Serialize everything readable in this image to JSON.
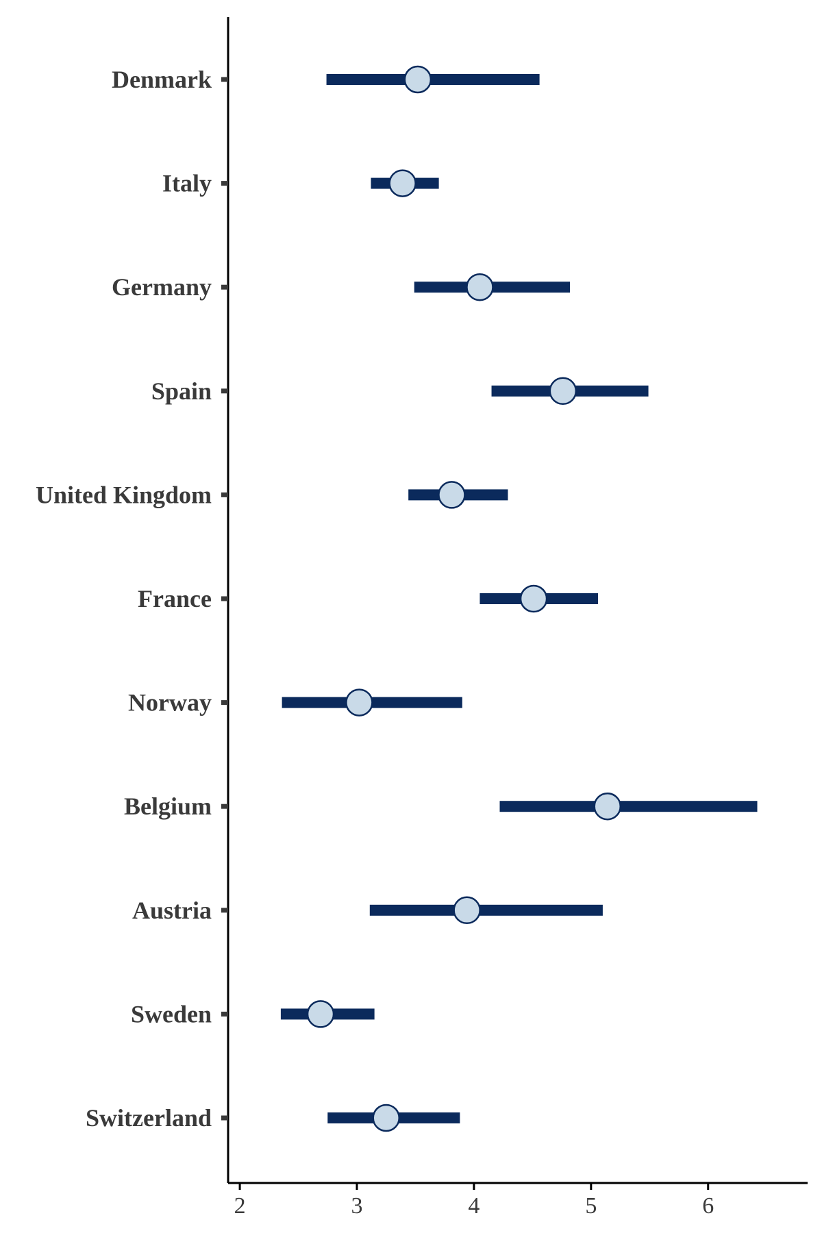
{
  "chart_data": {
    "type": "point-range",
    "title": "",
    "xlabel": "",
    "ylabel": "",
    "xlim": [
      1.9,
      6.85
    ],
    "x_ticks": [
      "2",
      "3",
      "4",
      "5",
      "6"
    ],
    "grid": false,
    "colors": {
      "range": "#0b2a5c",
      "point_fill": "#c9dae8",
      "point_stroke": "#0b2a5c",
      "axis": "#000000",
      "label": "#3a3a3a"
    },
    "categories": [
      "Denmark",
      "Italy",
      "Germany",
      "Spain",
      "United Kingdom",
      "France",
      "Norway",
      "Belgium",
      "Austria",
      "Sweden",
      "Switzerland"
    ],
    "estimates": [
      3.52,
      3.39,
      4.05,
      4.76,
      3.81,
      4.51,
      3.02,
      5.14,
      3.94,
      2.69,
      3.25
    ],
    "lower": [
      2.74,
      3.12,
      3.49,
      4.15,
      3.44,
      4.05,
      2.36,
      4.22,
      3.11,
      2.35,
      2.75
    ],
    "upper": [
      4.56,
      3.7,
      4.82,
      5.49,
      4.29,
      5.06,
      3.9,
      6.42,
      5.1,
      3.15,
      3.88
    ]
  }
}
